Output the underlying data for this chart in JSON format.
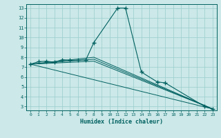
{
  "xlabel": "Humidex (Indice chaleur)",
  "bg_color": "#cce8e8",
  "grid_color": "#99cccc",
  "line_color": "#006060",
  "xlim": [
    -0.5,
    23.5
  ],
  "ylim": [
    2.6,
    13.4
  ],
  "yticks": [
    3,
    4,
    5,
    6,
    7,
    8,
    9,
    10,
    11,
    12,
    13
  ],
  "xticks": [
    0,
    1,
    2,
    3,
    4,
    5,
    6,
    7,
    8,
    9,
    10,
    11,
    12,
    13,
    14,
    15,
    16,
    17,
    18,
    19,
    20,
    21,
    22,
    23
  ],
  "main_line_x": [
    0,
    1,
    2,
    3,
    4,
    5,
    6,
    7,
    8,
    11,
    12,
    14,
    16,
    17,
    22,
    23
  ],
  "main_line_y": [
    7.3,
    7.55,
    7.6,
    7.5,
    7.75,
    7.7,
    7.7,
    7.75,
    9.5,
    13.0,
    13.0,
    6.5,
    5.5,
    5.4,
    3.0,
    2.75
  ],
  "straight_lines": [
    {
      "x": [
        0,
        23
      ],
      "y": [
        7.3,
        2.75
      ]
    },
    {
      "x": [
        0,
        8,
        23
      ],
      "y": [
        7.3,
        7.6,
        2.75
      ]
    },
    {
      "x": [
        0,
        8,
        23
      ],
      "y": [
        7.3,
        7.8,
        2.75
      ]
    },
    {
      "x": [
        0,
        8,
        23
      ],
      "y": [
        7.3,
        8.0,
        2.75
      ]
    }
  ]
}
